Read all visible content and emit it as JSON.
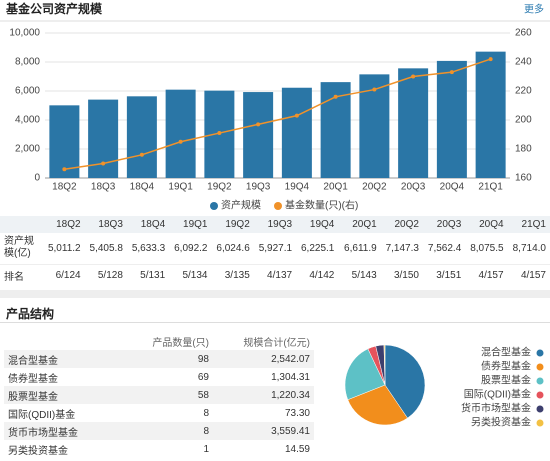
{
  "header": {
    "title": "基金公司资产规模",
    "more": "更多"
  },
  "chart_data": {
    "type": "bar",
    "categories": [
      "18Q2",
      "18Q3",
      "18Q4",
      "19Q1",
      "19Q2",
      "19Q3",
      "19Q4",
      "20Q1",
      "20Q2",
      "20Q3",
      "20Q4",
      "21Q1"
    ],
    "series": [
      {
        "name": "资产规模",
        "color": "#2a76a6",
        "values": [
          5011.2,
          5405.8,
          5633.3,
          6092.2,
          6024.6,
          5927.1,
          6225.1,
          6611.9,
          7147.3,
          7562.4,
          8075.5,
          8714.0
        ],
        "value_labels": [
          "5,011.2",
          "5,405.8",
          "5,633.3",
          "6,092.2",
          "6,024.6",
          "5,927.1",
          "6,225.1",
          "6,611.9",
          "7,147.3",
          "7,562.4",
          "8,075.5",
          "8,714.0"
        ]
      },
      {
        "name": "基金数量(只)(右)",
        "color": "#f0922a",
        "axis": "y2",
        "type": "line",
        "values": [
          166,
          170,
          176,
          185,
          191,
          197,
          203,
          216,
          221,
          230,
          233,
          242
        ]
      }
    ],
    "ylim": [
      0,
      10000
    ],
    "yticks": [
      0,
      {
        "value": 2000,
        "label": "2,000"
      },
      {
        "value": 4000,
        "label": "4,000"
      },
      {
        "value": 6000,
        "label": "6,000"
      },
      {
        "value": 8000,
        "label": "8,000"
      },
      {
        "value": 10000,
        "label": "10,000"
      }
    ],
    "y2lim": [
      160,
      260
    ],
    "y2ticks": [
      160,
      180,
      200,
      220,
      240,
      260
    ],
    "grid": true,
    "legend": "bottom"
  },
  "table": {
    "row_labels": [
      "资产规模(亿)",
      "排名"
    ],
    "ranks": [
      "6/124",
      "5/128",
      "5/131",
      "5/134",
      "3/135",
      "4/137",
      "4/142",
      "5/143",
      "3/150",
      "3/151",
      "4/157",
      "4/157"
    ]
  },
  "products": {
    "title": "产品结构",
    "headers": [
      "产品数量(只)",
      "规模合计(亿元)"
    ],
    "rows": [
      {
        "name": "混合型基金",
        "count": 98,
        "scale": "2,542.07",
        "color": "#2a76a6"
      },
      {
        "name": "债券型基金",
        "count": 69,
        "scale": "1,304.31",
        "color": "#f28e1c"
      },
      {
        "name": "股票型基金",
        "count": 58,
        "scale": "1,220.34",
        "color": "#5dc1c6"
      },
      {
        "name": "国际(QDII)基金",
        "count": 8,
        "scale": "73.30",
        "color": "#e5535c"
      },
      {
        "name": "货币市场型基金",
        "count": 8,
        "scale": "3,559.41",
        "color": "#3d3f6e"
      },
      {
        "name": "另类投资基金",
        "count": 1,
        "scale": "14.59",
        "color": "#f3c144"
      }
    ]
  }
}
